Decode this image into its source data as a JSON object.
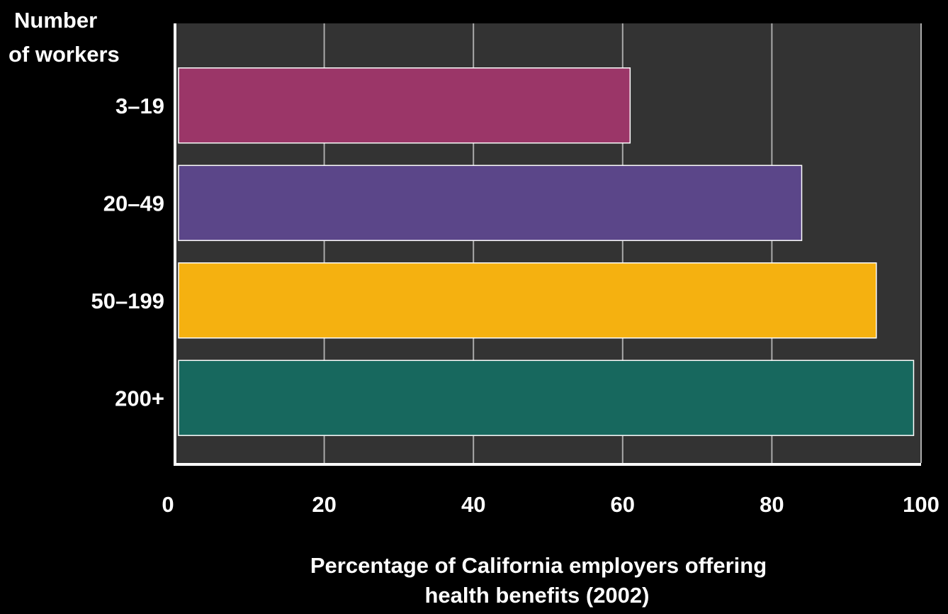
{
  "chart_data": {
    "type": "bar",
    "orientation": "horizontal",
    "categories": [
      "3–19",
      "20–49",
      "50–199",
      "200+"
    ],
    "values": [
      61,
      84,
      94,
      99
    ],
    "bar_colors": [
      "#9b3668",
      "#5b4689",
      "#f5b110",
      "#17685e"
    ],
    "title": "",
    "ylabel": "Number of workers",
    "ylabel_lines": [
      "Number",
      "of workers"
    ],
    "xlabel": "Percentage of California employers offering health benefits (2002)",
    "xlabel_lines": [
      "Percentage of California employers offering",
      "health benefits (2002)"
    ],
    "xlim": [
      0,
      100
    ],
    "xticks": [
      0,
      20,
      40,
      60,
      80,
      100
    ],
    "grid": "vertical",
    "legend": "none"
  },
  "colors": {
    "background": "#000000",
    "plot_area": "#333333",
    "gridline": "#aaaaaa",
    "axis": "#ffffff",
    "text": "#ffffff",
    "bar_edge": "#ffffff"
  }
}
